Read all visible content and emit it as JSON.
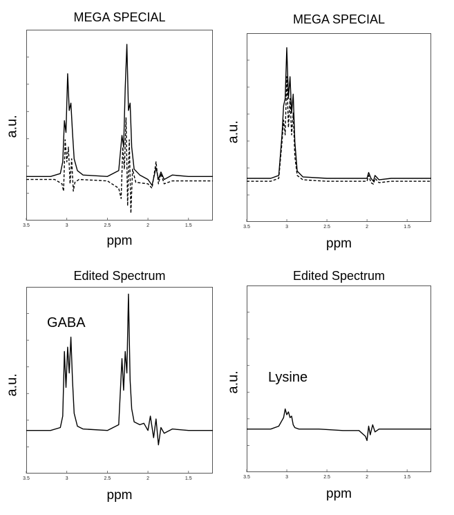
{
  "chart_data": [
    {
      "type": "line",
      "title": "MEGA SPECIAL",
      "xlabel": "ppm",
      "ylabel": "a.u.",
      "xlim": [
        3.5,
        1.2
      ],
      "x_reversed": true,
      "xticks": [
        "3.5",
        "3",
        "2.5",
        "2",
        "1.5"
      ],
      "ylim": [
        -0.3,
        1.0
      ],
      "series": [
        {
          "style": "solid",
          "x": [
            3.5,
            3.2,
            3.08,
            3.05,
            3.03,
            3.01,
            2.99,
            2.97,
            2.95,
            2.93,
            2.91,
            2.87,
            2.8,
            2.5,
            2.36,
            2.32,
            2.3,
            2.28,
            2.26,
            2.24,
            2.22,
            2.2,
            2.17,
            2.1,
            2.0,
            1.95,
            1.9,
            1.87,
            1.84,
            1.8,
            1.7,
            1.5,
            1.2
          ],
          "y": [
            0.0,
            0.0,
            0.02,
            0.1,
            0.38,
            0.3,
            0.7,
            0.45,
            0.5,
            0.3,
            0.12,
            0.04,
            0.01,
            0.0,
            0.04,
            0.28,
            0.2,
            0.6,
            0.9,
            0.45,
            0.5,
            0.2,
            0.05,
            0.01,
            -0.02,
            -0.06,
            0.06,
            -0.02,
            0.03,
            -0.02,
            0.01,
            0.0,
            0.0
          ]
        },
        {
          "style": "dashed",
          "x": [
            3.5,
            3.15,
            3.06,
            3.04,
            3.02,
            3.0,
            2.98,
            2.96,
            2.94,
            2.92,
            2.9,
            2.85,
            2.5,
            2.36,
            2.33,
            2.31,
            2.29,
            2.27,
            2.25,
            2.23,
            2.21,
            2.19,
            2.15,
            2.0,
            1.95,
            1.9,
            1.87,
            1.84,
            1.8,
            1.7,
            1.5,
            1.2
          ],
          "y": [
            -0.02,
            -0.02,
            -0.05,
            -0.1,
            0.25,
            0.1,
            0.2,
            -0.05,
            0.12,
            -0.1,
            -0.04,
            -0.02,
            -0.03,
            -0.08,
            -0.15,
            0.2,
            0.05,
            0.4,
            -0.2,
            0.25,
            -0.25,
            0.05,
            -0.04,
            -0.05,
            -0.08,
            0.1,
            -0.05,
            0.02,
            -0.05,
            -0.03,
            -0.03,
            -0.03
          ]
        }
      ]
    },
    {
      "type": "line",
      "title": "MEGA SPECIAL",
      "xlabel": "ppm",
      "ylabel": "a.u.",
      "xlim": [
        3.5,
        1.2
      ],
      "x_reversed": true,
      "xticks": [
        "3.5",
        "3",
        "2.5",
        "2",
        "1.5"
      ],
      "ylim": [
        -0.3,
        1.0
      ],
      "series": [
        {
          "style": "solid",
          "x": [
            3.5,
            3.2,
            3.1,
            3.06,
            3.04,
            3.02,
            3.0,
            2.98,
            2.96,
            2.94,
            2.92,
            2.9,
            2.87,
            2.8,
            2.5,
            2.0,
            1.98,
            1.95,
            1.92,
            1.9,
            1.85,
            1.7,
            1.5,
            1.2
          ],
          "y": [
            0.0,
            0.0,
            0.02,
            0.3,
            0.5,
            0.55,
            0.9,
            0.55,
            0.7,
            0.45,
            0.58,
            0.25,
            0.05,
            0.01,
            0.0,
            0.0,
            0.04,
            0.0,
            -0.02,
            0.02,
            -0.01,
            0.0,
            0.0,
            0.0
          ]
        },
        {
          "style": "dashed",
          "x": [
            3.5,
            3.2,
            3.1,
            3.06,
            3.04,
            3.02,
            3.0,
            2.98,
            2.96,
            2.94,
            2.92,
            2.9,
            2.87,
            2.8,
            2.5,
            2.0,
            1.98,
            1.95,
            1.92,
            1.9,
            1.85,
            1.7,
            1.5,
            1.2
          ],
          "y": [
            -0.02,
            -0.02,
            0.0,
            0.25,
            0.4,
            0.3,
            0.7,
            0.35,
            0.55,
            0.3,
            0.45,
            0.15,
            0.02,
            -0.01,
            -0.02,
            -0.02,
            0.02,
            -0.03,
            -0.04,
            0.0,
            -0.03,
            -0.02,
            -0.02,
            -0.02
          ]
        }
      ]
    },
    {
      "type": "line",
      "title": "Edited Spectrum",
      "xlabel": "ppm",
      "ylabel": "a.u.",
      "annotation": "GABA",
      "xlim": [
        3.5,
        1.2
      ],
      "x_reversed": true,
      "xticks": [
        "3.5",
        "3",
        "2.5",
        "2",
        "1.5"
      ],
      "ylim": [
        -0.3,
        1.0
      ],
      "series": [
        {
          "style": "solid",
          "x": [
            3.5,
            3.2,
            3.08,
            3.05,
            3.03,
            3.01,
            2.99,
            2.97,
            2.95,
            2.93,
            2.91,
            2.87,
            2.8,
            2.5,
            2.36,
            2.32,
            2.3,
            2.28,
            2.26,
            2.24,
            2.22,
            2.2,
            2.17,
            2.1,
            2.05,
            2.0,
            1.97,
            1.93,
            1.9,
            1.87,
            1.84,
            1.8,
            1.7,
            1.5,
            1.2
          ],
          "y": [
            0.0,
            0.0,
            0.02,
            0.1,
            0.55,
            0.3,
            0.58,
            0.4,
            0.65,
            0.35,
            0.12,
            0.03,
            0.01,
            0.0,
            0.04,
            0.5,
            0.28,
            0.55,
            0.4,
            0.95,
            0.35,
            0.15,
            0.06,
            0.04,
            0.05,
            0.0,
            0.1,
            -0.05,
            0.08,
            -0.1,
            0.02,
            -0.02,
            0.01,
            0.0,
            0.0
          ]
        }
      ]
    },
    {
      "type": "line",
      "title": "Edited Spectrum",
      "xlabel": "ppm",
      "ylabel": "a.u.",
      "annotation": "Lysine",
      "xlim": [
        3.5,
        1.2
      ],
      "x_reversed": true,
      "xticks": [
        "3.5",
        "3",
        "2.5",
        "2",
        "1.5"
      ],
      "ylim": [
        -0.3,
        1.0
      ],
      "series": [
        {
          "style": "solid",
          "x": [
            3.5,
            3.2,
            3.1,
            3.06,
            3.04,
            3.02,
            3.0,
            2.98,
            2.96,
            2.94,
            2.92,
            2.9,
            2.85,
            2.6,
            2.3,
            2.1,
            2.02,
            2.0,
            1.98,
            1.96,
            1.93,
            1.9,
            1.85,
            1.7,
            1.5,
            1.2
          ],
          "y": [
            0.0,
            0.0,
            0.02,
            0.06,
            0.08,
            0.14,
            0.1,
            0.12,
            0.08,
            0.09,
            0.03,
            0.01,
            0.0,
            0.0,
            -0.01,
            -0.01,
            -0.05,
            -0.08,
            0.02,
            -0.04,
            0.03,
            -0.02,
            0.0,
            0.0,
            0.0,
            0.0
          ]
        }
      ]
    }
  ]
}
